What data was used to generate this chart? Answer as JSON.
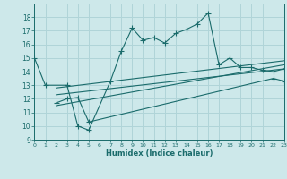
{
  "xlabel": "Humidex (Indice chaleur)",
  "bg_color": "#cde8ea",
  "grid_color": "#b0d4d8",
  "line_color": "#1a6b6b",
  "xmin": 0,
  "xmax": 23,
  "ymin": 9,
  "ymax": 19,
  "xticks": [
    0,
    1,
    2,
    3,
    4,
    5,
    6,
    7,
    8,
    9,
    10,
    11,
    12,
    13,
    14,
    15,
    16,
    17,
    18,
    19,
    20,
    21,
    22,
    23
  ],
  "yticks": [
    9,
    10,
    11,
    12,
    13,
    14,
    15,
    16,
    17,
    18
  ],
  "line1_x": [
    0,
    1,
    3,
    4,
    5,
    7,
    8,
    9,
    10,
    11,
    12,
    13,
    14,
    15,
    16,
    17,
    18,
    19,
    20,
    21,
    22,
    23
  ],
  "line1_y": [
    15,
    13,
    13,
    10,
    9.7,
    13.3,
    15.5,
    17.2,
    16.3,
    16.5,
    16.1,
    16.8,
    17.1,
    17.5,
    18.3,
    14.5,
    15.0,
    14.3,
    14.3,
    14.1,
    14.0,
    14.2
  ],
  "line2_x": [
    2,
    3,
    4,
    5,
    22,
    23
  ],
  "line2_y": [
    11.7,
    12.0,
    12.1,
    10.3,
    13.5,
    13.3
  ],
  "line3_x": [
    2,
    23
  ],
  "line3_y": [
    11.5,
    14.5
  ],
  "line4_x": [
    2,
    23
  ],
  "line4_y": [
    12.3,
    14.2
  ],
  "line5_x": [
    2,
    23
  ],
  "line5_y": [
    12.8,
    14.8
  ]
}
